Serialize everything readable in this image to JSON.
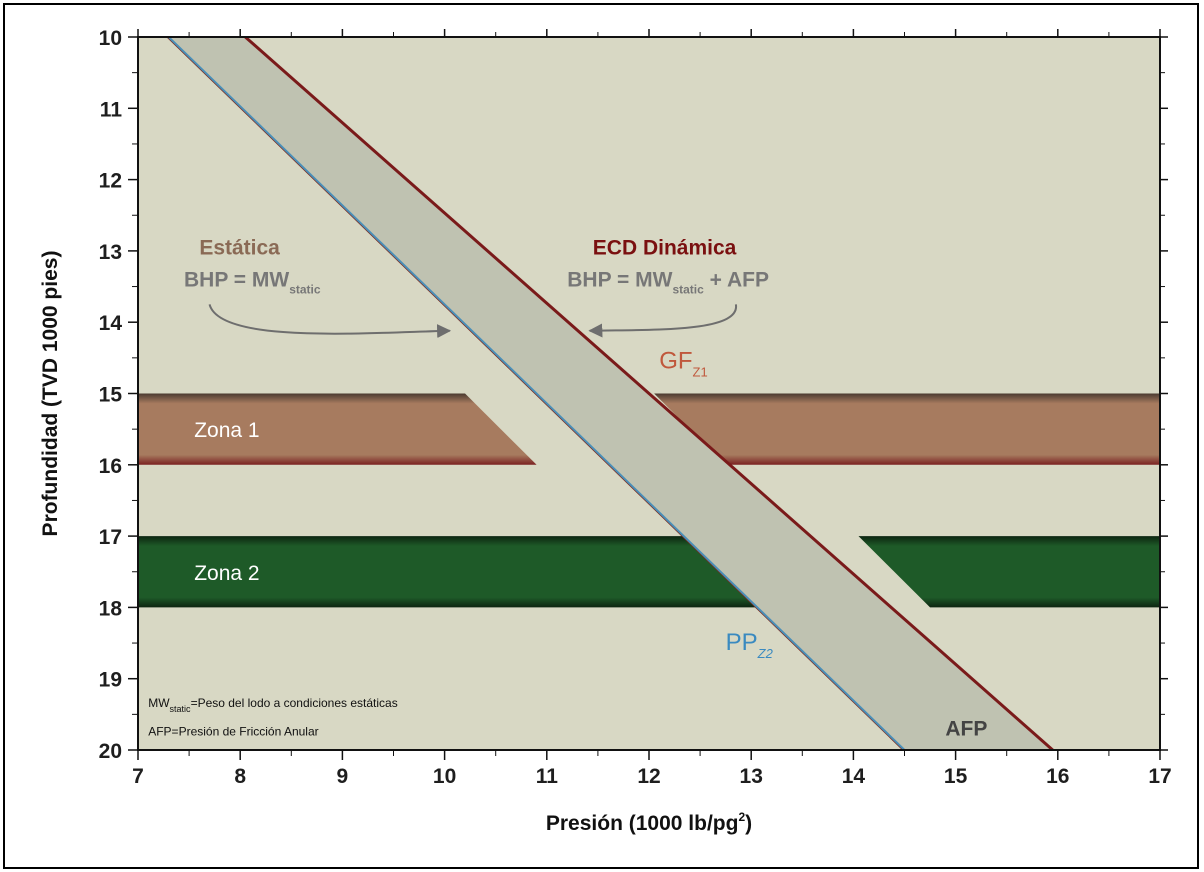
{
  "chart_data": {
    "type": "line",
    "x_axis": {
      "label": "Presión (1000 lb/pg",
      "label_sup": "2",
      "label_end": ")",
      "range": [
        7,
        17
      ],
      "ticks": [
        "7",
        "8",
        "9",
        "10",
        "11",
        "12",
        "13",
        "14",
        "15",
        "16",
        "17"
      ]
    },
    "y_axis": {
      "label": "Profundidad (TVD 1000 pies)",
      "range": [
        10,
        20
      ],
      "inverted": true,
      "ticks": [
        "10",
        "11",
        "12",
        "13",
        "14",
        "15",
        "16",
        "17",
        "18",
        "19",
        "20"
      ]
    },
    "series": [
      {
        "name": "BHP = MW static",
        "color": "#4a8fb8",
        "points": [
          [
            7.3,
            10
          ],
          [
            14.5,
            20
          ]
        ]
      },
      {
        "name": "ECD Dinámica",
        "color": "#7a1a1a",
        "points": [
          [
            8.05,
            10
          ],
          [
            15.95,
            20
          ]
        ]
      }
    ],
    "zones": [
      {
        "label": "Zona 1",
        "depth_top": 15,
        "depth_bottom": 16,
        "color": "#a77b5f",
        "gap": {
          "top_left_x": 10.2,
          "top_right_x": 12.05,
          "bottom_left_x": 10.9,
          "bottom_right_x": 12.75
        }
      },
      {
        "label": "Zona 2",
        "depth_top": 17,
        "depth_bottom": 18,
        "color": "#1e5a28",
        "gap": {
          "top_left_x": 12.35,
          "top_right_x": 14.05,
          "bottom_left_x": 13.05,
          "bottom_right_x": 14.75
        }
      }
    ],
    "annotations": {
      "static_title": "Estática",
      "static_formula_main": "BHP = MW",
      "static_formula_sub": "static",
      "dynamic_title": "ECD Dinámica",
      "dynamic_formula_main": "BHP = MW",
      "dynamic_formula_sub": "static",
      "dynamic_formula_tail": " + AFP",
      "gf_main": "GF",
      "gf_sub": "Z1",
      "pp_main": "PP",
      "pp_sub": "Z2",
      "afp": "AFP"
    },
    "footnotes": {
      "line1_main": "MW",
      "line1_sub": "static",
      "line1_tail": "=Peso del lodo a condiciones estáticas",
      "line2": "AFP=Presión de Fricción Anular"
    },
    "colors": {
      "background": "#d8d8c4",
      "band": "#bfc2b1",
      "static_line": "#4a8fb8",
      "dynamic_line": "#7a1a1a",
      "arrow": "#6e6e6e",
      "static_title": "#8a6a55",
      "dynamic_title": "#7a1010",
      "formula": "#777777",
      "gf": "#c0583c",
      "pp": "#3a8ac0",
      "afp": "#444444"
    },
    "grid": false
  }
}
